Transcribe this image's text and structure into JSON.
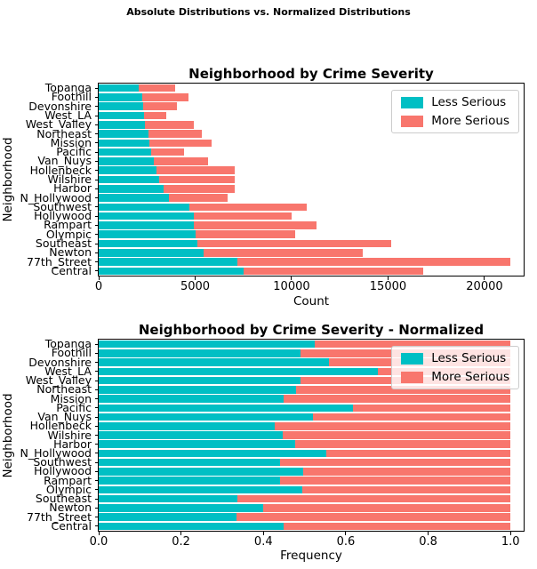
{
  "suptitle": "Absolute Distributions vs. Normalized Distributions",
  "chart_data": [
    {
      "type": "bar",
      "orientation": "horizontal",
      "stacked": true,
      "title": "Neighborhood by Crime Severity",
      "xlabel": "Count",
      "ylabel": "Neighborhood",
      "grid": false,
      "legend_position": "upper right",
      "xlim": [
        0,
        22030
      ],
      "xticks": [
        {
          "value": 0,
          "label": "0"
        },
        {
          "value": 5000,
          "label": "5000"
        },
        {
          "value": 10000,
          "label": "10000"
        },
        {
          "value": 15000,
          "label": "15000"
        },
        {
          "value": 20000,
          "label": "20000"
        }
      ],
      "categories": [
        "Topanga",
        "Foothill",
        "Devonshire",
        "West_LA",
        "West_Valley",
        "Northeast",
        "Mission",
        "Pacific",
        "Van_Nuys",
        "Hollenbeck",
        "Wilshire",
        "Harbor",
        "N_Hollywood",
        "Southwest",
        "Hollywood",
        "Rampart",
        "Olympic",
        "Southeast",
        "Newton",
        "77th_Street",
        "Central"
      ],
      "series": [
        {
          "name": "Less Serious",
          "color": "#00BFC4",
          "values": [
            2080,
            2260,
            2310,
            2340,
            2410,
            2570,
            2610,
            2720,
            2870,
            3000,
            3120,
            3370,
            3640,
            4690,
            4920,
            4920,
            5030,
            5100,
            5460,
            7180,
            7530
          ]
        },
        {
          "name": "More Serious",
          "color": "#F8766D",
          "values": [
            1870,
            2390,
            1760,
            1160,
            2510,
            2780,
            3240,
            1690,
            2780,
            4040,
            3920,
            3670,
            3030,
            6080,
            5070,
            6380,
            5150,
            10070,
            8220,
            14150,
            9300
          ]
        }
      ]
    },
    {
      "type": "bar",
      "orientation": "horizontal",
      "stacked": true,
      "title": "Neighborhood by Crime Severity - Normalized",
      "xlabel": "Frequency",
      "ylabel": "Neighborhood",
      "grid": false,
      "legend_position": "upper right",
      "xlim": [
        0,
        1.032
      ],
      "xticks": [
        {
          "value": 0.0,
          "label": "0.0"
        },
        {
          "value": 0.2,
          "label": "0.2"
        },
        {
          "value": 0.4,
          "label": "0.4"
        },
        {
          "value": 0.6,
          "label": "0.6"
        },
        {
          "value": 0.8,
          "label": "0.8"
        },
        {
          "value": 1.0,
          "label": "1.0"
        }
      ],
      "categories": [
        "Topanga",
        "Foothill",
        "Devonshire",
        "West_LA",
        "West_Valley",
        "Northeast",
        "Mission",
        "Pacific",
        "Van_Nuys",
        "Hollenbeck",
        "Wilshire",
        "Harbor",
        "N_Hollywood",
        "Southwest",
        "Hollywood",
        "Rampart",
        "Olympic",
        "Southeast",
        "Newton",
        "77th_Street",
        "Central"
      ],
      "series": [
        {
          "name": "Less Serious",
          "color": "#00BFC4",
          "values": [
            0.525,
            0.49,
            0.56,
            0.677,
            0.49,
            0.48,
            0.448,
            0.617,
            0.521,
            0.428,
            0.446,
            0.478,
            0.552,
            0.44,
            0.496,
            0.44,
            0.495,
            0.337,
            0.4,
            0.335,
            0.449
          ]
        },
        {
          "name": "More Serious",
          "color": "#F8766D",
          "values": [
            0.475,
            0.51,
            0.44,
            0.323,
            0.51,
            0.52,
            0.552,
            0.383,
            0.479,
            0.572,
            0.554,
            0.522,
            0.448,
            0.56,
            0.504,
            0.56,
            0.505,
            0.663,
            0.6,
            0.665,
            0.551
          ]
        }
      ]
    }
  ]
}
